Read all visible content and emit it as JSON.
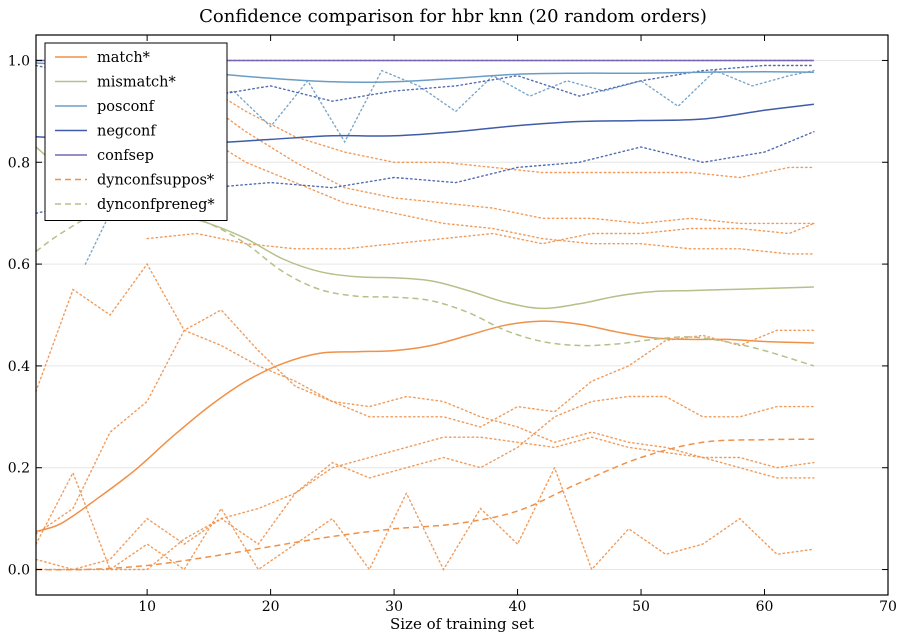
{
  "chart_data": {
    "type": "line",
    "title": "Confidence comparison for hbr knn (20 random orders)",
    "xlabel": "Size of training set",
    "ylabel": "",
    "xlim": [
      1,
      70
    ],
    "ylim": [
      -0.05,
      1.05
    ],
    "xticks": [
      10,
      20,
      30,
      40,
      50,
      60,
      70
    ],
    "yticks": [
      0.0,
      0.2,
      0.4,
      0.6,
      0.8,
      1.0
    ],
    "ytick_labels": [
      "0.0",
      "0.2",
      "0.4",
      "0.6",
      "0.8",
      "1.0"
    ],
    "grid": "horizontal",
    "legend_position": "top-left",
    "series": [
      {
        "name": "match*",
        "color": "#f0914a",
        "style": "solid",
        "x": [
          1,
          3,
          6,
          9,
          12,
          15,
          18,
          21,
          24,
          27,
          30,
          33,
          36,
          39,
          42,
          45,
          48,
          51,
          54,
          57,
          60,
          64
        ],
        "y": [
          0.075,
          0.09,
          0.14,
          0.195,
          0.26,
          0.32,
          0.37,
          0.405,
          0.425,
          0.428,
          0.43,
          0.44,
          0.46,
          0.48,
          0.488,
          0.482,
          0.467,
          0.455,
          0.452,
          0.452,
          0.448,
          0.445
        ]
      },
      {
        "name": "mismatch*",
        "color": "#b5c08a",
        "style": "solid",
        "x": [
          1,
          3,
          6,
          9,
          12,
          15,
          18,
          21,
          24,
          27,
          30,
          33,
          36,
          39,
          42,
          45,
          48,
          51,
          54,
          57,
          60,
          64
        ],
        "y": [
          0.83,
          0.79,
          0.75,
          0.72,
          0.7,
          0.68,
          0.65,
          0.61,
          0.585,
          0.575,
          0.573,
          0.567,
          0.548,
          0.525,
          0.513,
          0.522,
          0.537,
          0.546,
          0.548,
          0.55,
          0.552,
          0.555
        ]
      },
      {
        "name": "posconf",
        "color": "#6a9dc5",
        "style": "solid",
        "x": [
          1,
          5,
          10,
          15,
          20,
          25,
          30,
          35,
          40,
          45,
          50,
          55,
          60,
          64
        ],
        "y": [
          0.995,
          0.99,
          0.985,
          0.975,
          0.965,
          0.958,
          0.958,
          0.965,
          0.973,
          0.975,
          0.975,
          0.977,
          0.978,
          0.977
        ]
      },
      {
        "name": "negconf",
        "color": "#3f5ca8",
        "style": "solid",
        "x": [
          1,
          5,
          10,
          15,
          20,
          25,
          30,
          35,
          40,
          45,
          50,
          55,
          60,
          64
        ],
        "y": [
          0.85,
          0.845,
          0.838,
          0.838,
          0.845,
          0.852,
          0.852,
          0.86,
          0.872,
          0.88,
          0.882,
          0.885,
          0.902,
          0.914
        ]
      },
      {
        "name": "confsep",
        "color": "#7a66b5",
        "style": "solid",
        "x": [
          1,
          64
        ],
        "y": [
          1.0,
          1.0
        ]
      },
      {
        "name": "dynconfsuppos*",
        "color": "#f0914a",
        "style": "dashed",
        "x": [
          1,
          5,
          10,
          15,
          20,
          25,
          30,
          35,
          40,
          45,
          50,
          55,
          60,
          64
        ],
        "y": [
          0.0,
          0.0,
          0.008,
          0.025,
          0.045,
          0.065,
          0.08,
          0.09,
          0.115,
          0.17,
          0.22,
          0.25,
          0.255,
          0.256
        ]
      },
      {
        "name": "dynconfpreneg*",
        "color": "#b5c08a",
        "style": "dashed",
        "x": [
          1,
          3,
          6,
          9,
          12,
          15,
          18,
          21,
          24,
          27,
          30,
          33,
          36,
          39,
          42,
          45,
          48,
          51,
          54,
          57,
          60,
          64
        ],
        "y": [
          0.625,
          0.66,
          0.7,
          0.71,
          0.705,
          0.68,
          0.64,
          0.585,
          0.55,
          0.537,
          0.535,
          0.528,
          0.505,
          0.47,
          0.448,
          0.44,
          0.443,
          0.452,
          0.457,
          0.447,
          0.43,
          0.4
        ]
      }
    ],
    "dotted_series": [
      {
        "color": "#f0914a",
        "x": [
          1,
          4,
          7,
          10,
          13,
          16,
          19,
          22,
          25,
          28,
          31,
          34,
          37,
          40,
          43,
          46,
          49,
          52,
          55,
          58,
          61,
          64
        ],
        "y": [
          0.07,
          0.12,
          0.27,
          0.33,
          0.47,
          0.51,
          0.43,
          0.36,
          0.33,
          0.3,
          0.3,
          0.3,
          0.28,
          0.32,
          0.31,
          0.37,
          0.4,
          0.45,
          0.46,
          0.44,
          0.47,
          0.47
        ]
      },
      {
        "color": "#f0914a",
        "x": [
          1,
          4,
          7,
          10,
          13,
          16,
          19,
          22,
          25,
          28,
          31,
          34,
          37,
          40,
          43,
          46,
          49,
          52,
          55,
          58,
          61,
          64
        ],
        "y": [
          0.0,
          0.0,
          0.02,
          0.1,
          0.05,
          0.1,
          0.12,
          0.15,
          0.21,
          0.18,
          0.2,
          0.22,
          0.2,
          0.24,
          0.3,
          0.33,
          0.34,
          0.34,
          0.3,
          0.3,
          0.32,
          0.32
        ]
      },
      {
        "color": "#f0914a",
        "x": [
          1,
          4,
          7,
          10,
          13,
          16,
          19,
          22,
          25,
          28,
          31,
          34,
          37,
          40,
          43,
          46,
          49,
          52,
          55,
          58,
          61,
          64
        ],
        "y": [
          0.02,
          0.0,
          0.0,
          0.0,
          0.06,
          0.1,
          0.05,
          0.15,
          0.2,
          0.22,
          0.24,
          0.26,
          0.26,
          0.25,
          0.24,
          0.26,
          0.24,
          0.23,
          0.22,
          0.22,
          0.2,
          0.21
        ]
      },
      {
        "color": "#f0914a",
        "x": [
          1,
          4,
          7,
          10,
          13,
          16,
          19,
          22,
          25,
          28,
          31,
          34,
          37,
          40,
          43,
          46,
          49,
          52,
          55,
          58,
          61,
          64
        ],
        "y": [
          0.05,
          0.19,
          0.0,
          0.05,
          0.0,
          0.12,
          0.0,
          0.05,
          0.1,
          0.0,
          0.15,
          0.0,
          0.12,
          0.05,
          0.2,
          0.0,
          0.08,
          0.03,
          0.05,
          0.1,
          0.03,
          0.04
        ]
      },
      {
        "color": "#f0914a",
        "x": [
          1,
          4,
          7,
          10,
          13,
          16,
          19,
          22,
          25,
          28,
          31,
          34,
          37,
          40,
          43,
          46,
          49,
          52,
          55,
          58,
          61,
          64
        ],
        "y": [
          0.35,
          0.55,
          0.5,
          0.6,
          0.47,
          0.44,
          0.4,
          0.37,
          0.33,
          0.32,
          0.34,
          0.33,
          0.3,
          0.28,
          0.25,
          0.27,
          0.25,
          0.24,
          0.22,
          0.2,
          0.18,
          0.18
        ]
      },
      {
        "color": "#f0914a",
        "x": [
          10,
          14,
          18,
          22,
          26,
          30,
          34,
          38,
          42,
          46,
          50,
          54,
          58,
          62,
          64
        ],
        "y": [
          0.65,
          0.66,
          0.64,
          0.63,
          0.63,
          0.64,
          0.65,
          0.66,
          0.64,
          0.66,
          0.66,
          0.67,
          0.67,
          0.66,
          0.68
        ]
      },
      {
        "color": "#f0914a",
        "x": [
          10,
          14,
          18,
          22,
          26,
          30,
          34,
          38,
          42,
          46,
          50,
          54,
          58,
          62,
          64
        ],
        "y": [
          0.92,
          0.86,
          0.8,
          0.76,
          0.72,
          0.7,
          0.68,
          0.67,
          0.65,
          0.64,
          0.64,
          0.63,
          0.63,
          0.62,
          0.62
        ]
      },
      {
        "color": "#f0914a",
        "x": [
          10,
          14,
          18,
          22,
          26,
          30,
          34,
          38,
          42,
          46,
          50,
          54,
          58,
          62,
          64
        ],
        "y": [
          0.96,
          0.93,
          0.86,
          0.8,
          0.75,
          0.73,
          0.72,
          0.71,
          0.69,
          0.69,
          0.68,
          0.69,
          0.68,
          0.68,
          0.68
        ]
      },
      {
        "color": "#f0914a",
        "x": [
          10,
          14,
          18,
          22,
          26,
          30,
          34,
          38,
          42,
          46,
          50,
          54,
          58,
          62,
          64
        ],
        "y": [
          0.98,
          0.96,
          0.9,
          0.85,
          0.82,
          0.8,
          0.8,
          0.79,
          0.78,
          0.78,
          0.78,
          0.78,
          0.77,
          0.79,
          0.79
        ]
      },
      {
        "color": "#6a9dc5",
        "x": [
          5,
          8,
          11,
          14,
          17,
          20,
          23,
          26,
          29,
          32,
          35,
          38,
          41,
          44,
          47,
          50,
          53,
          56,
          59,
          62,
          64
        ],
        "y": [
          0.6,
          0.75,
          0.85,
          0.92,
          0.94,
          0.87,
          0.96,
          0.84,
          0.98,
          0.95,
          0.9,
          0.97,
          0.93,
          0.96,
          0.94,
          0.96,
          0.91,
          0.98,
          0.95,
          0.97,
          0.98
        ]
      },
      {
        "color": "#3f5ca8",
        "x": [
          1,
          5,
          10,
          15,
          20,
          25,
          30,
          35,
          40,
          45,
          50,
          55,
          60,
          64
        ],
        "y": [
          0.7,
          0.72,
          0.74,
          0.75,
          0.76,
          0.75,
          0.77,
          0.76,
          0.79,
          0.8,
          0.83,
          0.8,
          0.82,
          0.86
        ]
      },
      {
        "color": "#3f5ca8",
        "x": [
          1,
          5,
          10,
          15,
          20,
          25,
          30,
          35,
          40,
          45,
          50,
          55,
          60,
          64
        ],
        "y": [
          0.99,
          0.97,
          0.94,
          0.93,
          0.95,
          0.92,
          0.94,
          0.95,
          0.97,
          0.93,
          0.96,
          0.98,
          0.99,
          0.99
        ]
      },
      {
        "color": "#7a66b5",
        "x": [
          1,
          10,
          20,
          30,
          40,
          50,
          60,
          64
        ],
        "y": [
          1.0,
          1.0,
          1.0,
          1.0,
          1.0,
          1.0,
          1.0,
          1.0
        ]
      }
    ]
  }
}
